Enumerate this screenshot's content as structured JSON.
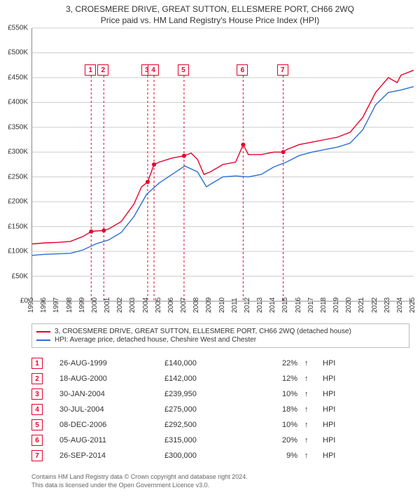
{
  "title_line1": "3, CROESMERE DRIVE, GREAT SUTTON, ELLESMERE PORT, CH66 2WQ",
  "title_line2": "Price paid vs. HM Land Registry's House Price Index (HPI)",
  "chart": {
    "ylim": [
      0,
      550000
    ],
    "ytick_step": 50000,
    "y_labels": [
      "£0",
      "£50K",
      "£100K",
      "£150K",
      "£200K",
      "£250K",
      "£300K",
      "£350K",
      "£400K",
      "£450K",
      "£500K",
      "£550K"
    ],
    "x_years_start": 1995,
    "x_years_end": 2025,
    "x_labels": [
      "1995",
      "1996",
      "1997",
      "1998",
      "1999",
      "2000",
      "2001",
      "2002",
      "2003",
      "2004",
      "2005",
      "2006",
      "2007",
      "2008",
      "2009",
      "2010",
      "2011",
      "2012",
      "2013",
      "2014",
      "2015",
      "2016",
      "2017",
      "2018",
      "2019",
      "2020",
      "2021",
      "2022",
      "2023",
      "2024",
      "2025"
    ],
    "grid_color": "#cccccc",
    "line_color_subject": "#e4002b",
    "line_color_hpi": "#2b6fd4",
    "line_width": 1.4,
    "marker_border_color": "#e4002b",
    "vline_color": "#e4002b",
    "vline_pattern": "3 3",
    "marker_y": 52,
    "series_subject": [
      [
        1995,
        115000
      ],
      [
        1996,
        117000
      ],
      [
        1997,
        118000
      ],
      [
        1998,
        120000
      ],
      [
        1999,
        130000
      ],
      [
        1999.64,
        140000
      ],
      [
        2000,
        141000
      ],
      [
        2000.63,
        142000
      ],
      [
        2001,
        145000
      ],
      [
        2002,
        160000
      ],
      [
        2003,
        195000
      ],
      [
        2003.6,
        230000
      ],
      [
        2004.08,
        239950
      ],
      [
        2004.58,
        275000
      ],
      [
        2005,
        280000
      ],
      [
        2006,
        288000
      ],
      [
        2006.94,
        292500
      ],
      [
        2007.5,
        298000
      ],
      [
        2008,
        285000
      ],
      [
        2008.5,
        255000
      ],
      [
        2009,
        260000
      ],
      [
        2010,
        275000
      ],
      [
        2011,
        280000
      ],
      [
        2011.59,
        315000
      ],
      [
        2012,
        295000
      ],
      [
        2013,
        295000
      ],
      [
        2014,
        300000
      ],
      [
        2014.74,
        300000
      ],
      [
        2015,
        305000
      ],
      [
        2016,
        315000
      ],
      [
        2017,
        320000
      ],
      [
        2018,
        325000
      ],
      [
        2019,
        330000
      ],
      [
        2020,
        340000
      ],
      [
        2021,
        370000
      ],
      [
        2022,
        420000
      ],
      [
        2023,
        450000
      ],
      [
        2023.7,
        440000
      ],
      [
        2024,
        455000
      ],
      [
        2025,
        465000
      ]
    ],
    "series_hpi": [
      [
        1995,
        92000
      ],
      [
        1996,
        94000
      ],
      [
        1997,
        95000
      ],
      [
        1998,
        96000
      ],
      [
        1999,
        103000
      ],
      [
        2000,
        115000
      ],
      [
        2001,
        123000
      ],
      [
        2002,
        138000
      ],
      [
        2003,
        170000
      ],
      [
        2004,
        215000
      ],
      [
        2005,
        238000
      ],
      [
        2006,
        255000
      ],
      [
        2007,
        272000
      ],
      [
        2008,
        260000
      ],
      [
        2008.7,
        230000
      ],
      [
        2009,
        235000
      ],
      [
        2010,
        250000
      ],
      [
        2011,
        252000
      ],
      [
        2012,
        250000
      ],
      [
        2013,
        255000
      ],
      [
        2014,
        270000
      ],
      [
        2015,
        280000
      ],
      [
        2016,
        293000
      ],
      [
        2017,
        300000
      ],
      [
        2018,
        305000
      ],
      [
        2019,
        310000
      ],
      [
        2020,
        318000
      ],
      [
        2021,
        345000
      ],
      [
        2022,
        395000
      ],
      [
        2023,
        420000
      ],
      [
        2024,
        425000
      ],
      [
        2025,
        432000
      ]
    ],
    "event_markers": [
      {
        "n": "1",
        "year": 1999.64
      },
      {
        "n": "2",
        "year": 2000.63
      },
      {
        "n": "3",
        "year": 2004.08
      },
      {
        "n": "4",
        "year": 2004.58
      },
      {
        "n": "5",
        "year": 2006.94
      },
      {
        "n": "6",
        "year": 2011.59
      },
      {
        "n": "7",
        "year": 2014.74
      }
    ]
  },
  "legend": {
    "line1": "3, CROESMERE DRIVE, GREAT SUTTON, ELLESMERE PORT, CH66 2WQ (detached house)",
    "line2": "HPI: Average price, detached house, Cheshire West and Chester"
  },
  "events": [
    {
      "n": "1",
      "date": "26-AUG-1999",
      "price": "£140,000",
      "pct": "22%",
      "arrow": "↑",
      "label": "HPI"
    },
    {
      "n": "2",
      "date": "18-AUG-2000",
      "price": "£142,000",
      "pct": "12%",
      "arrow": "↑",
      "label": "HPI"
    },
    {
      "n": "3",
      "date": "30-JAN-2004",
      "price": "£239,950",
      "pct": "10%",
      "arrow": "↑",
      "label": "HPI"
    },
    {
      "n": "4",
      "date": "30-JUL-2004",
      "price": "£275,000",
      "pct": "18%",
      "arrow": "↑",
      "label": "HPI"
    },
    {
      "n": "5",
      "date": "08-DEC-2006",
      "price": "£292,500",
      "pct": "10%",
      "arrow": "↑",
      "label": "HPI"
    },
    {
      "n": "6",
      "date": "05-AUG-2011",
      "price": "£315,000",
      "pct": "20%",
      "arrow": "↑",
      "label": "HPI"
    },
    {
      "n": "7",
      "date": "26-SEP-2014",
      "price": "£300,000",
      "pct": "9%",
      "arrow": "↑",
      "label": "HPI"
    }
  ],
  "footer_line1": "Contains HM Land Registry data © Crown copyright and database right 2024.",
  "footer_line2": "This data is licensed under the Open Government Licence v3.0."
}
